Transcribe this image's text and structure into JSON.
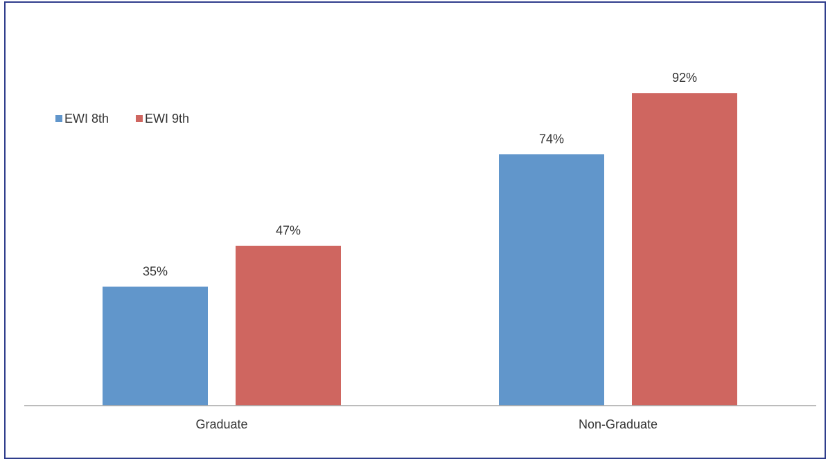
{
  "chart_data": {
    "type": "bar",
    "categories": [
      "Graduate",
      "Non-Graduate"
    ],
    "series": [
      {
        "name": "EWI 8th",
        "values": [
          35,
          74
        ],
        "labels": [
          "35%",
          "74%"
        ],
        "color": "#6196cb"
      },
      {
        "name": "EWI 9th",
        "values": [
          47,
          92
        ],
        "labels": [
          "47%",
          "92%"
        ],
        "color": "#cf6660"
      }
    ],
    "ylim": [
      0,
      100
    ],
    "grid": false,
    "legend": "top-left",
    "axis_color": "#a6a6a6",
    "text_color": "#333333",
    "border_color": "#2f3d8c"
  }
}
